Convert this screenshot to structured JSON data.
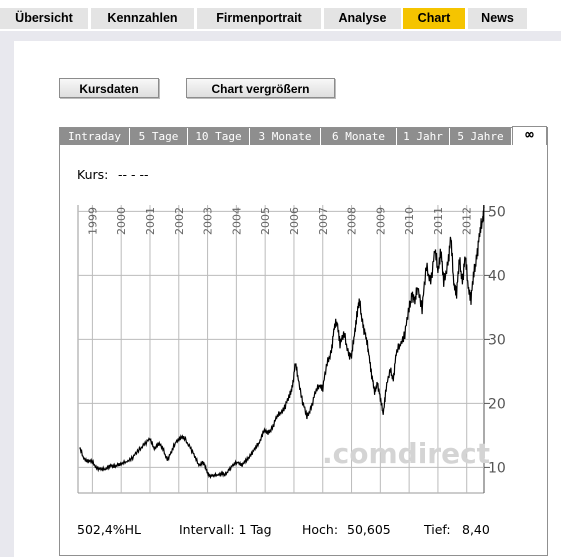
{
  "nav": {
    "tabs": [
      {
        "label": "Übersicht"
      },
      {
        "label": "Kennzahlen"
      },
      {
        "label": "Firmenportrait"
      },
      {
        "label": "Analyse"
      },
      {
        "label": "Chart",
        "active": true
      },
      {
        "label": "News"
      }
    ],
    "accent_color": "#f5c400"
  },
  "buttons": {
    "kursdaten": "Kursdaten",
    "vergroessern": "Chart vergrößern"
  },
  "ranges": {
    "items": [
      "Intraday",
      "5 Tage",
      "10 Tage",
      "3 Monate",
      "6 Monate",
      "1 Jahr",
      "5 Jahre"
    ],
    "selected_icon": "infinity-icon",
    "selected_glyph": "∞"
  },
  "kurs": {
    "label": "Kurs:",
    "value": "-- - --"
  },
  "watermark": ".comdirect",
  "footer": {
    "performance": "502,4%HL",
    "intervall": "Intervall: 1 Tag",
    "hoch_label": "Hoch:",
    "hoch_value": "50,605",
    "tief_label": "Tief:",
    "tief_value": "8,40"
  },
  "chart_data": {
    "type": "line",
    "title": "",
    "xlabel": "",
    "ylabel": "",
    "x_ticks": [
      "1999",
      "2000",
      "2001",
      "2002",
      "2003",
      "2004",
      "2005",
      "2006",
      "2007",
      "2008",
      "2009",
      "2010",
      "2011",
      "2012"
    ],
    "y_ticks": [
      10,
      20,
      30,
      40,
      50
    ],
    "ylim": [
      6,
      51
    ],
    "xlim": [
      1998.5,
      2012.6
    ],
    "grid": true,
    "series": [
      {
        "points": [
          [
            1998.55,
            13.0
          ],
          [
            1998.7,
            11.5
          ],
          [
            1998.85,
            11.0
          ],
          [
            1999.0,
            10.8
          ],
          [
            1999.15,
            10.0
          ],
          [
            1999.3,
            9.6
          ],
          [
            1999.45,
            9.8
          ],
          [
            1999.6,
            10.3
          ],
          [
            1999.75,
            10.0
          ],
          [
            1999.9,
            10.6
          ],
          [
            2000.0,
            10.4
          ],
          [
            2000.2,
            11.0
          ],
          [
            2000.4,
            11.6
          ],
          [
            2000.6,
            12.5
          ],
          [
            2000.8,
            13.8
          ],
          [
            2001.0,
            14.3
          ],
          [
            2001.15,
            13.0
          ],
          [
            2001.3,
            13.8
          ],
          [
            2001.45,
            12.8
          ],
          [
            2001.6,
            11.3
          ],
          [
            2001.75,
            12.3
          ],
          [
            2001.9,
            14.1
          ],
          [
            2002.05,
            14.7
          ],
          [
            2002.2,
            14.4
          ],
          [
            2002.4,
            13.3
          ],
          [
            2002.55,
            11.6
          ],
          [
            2002.7,
            10.4
          ],
          [
            2002.85,
            10.9
          ],
          [
            2002.95,
            9.6
          ],
          [
            2003.05,
            8.8
          ],
          [
            2003.2,
            8.6
          ],
          [
            2003.35,
            8.9
          ],
          [
            2003.5,
            9.1
          ],
          [
            2003.6,
            8.7
          ],
          [
            2003.75,
            9.8
          ],
          [
            2003.9,
            10.3
          ],
          [
            2004.05,
            10.9
          ],
          [
            2004.2,
            10.4
          ],
          [
            2004.35,
            11.0
          ],
          [
            2004.5,
            12.1
          ],
          [
            2004.65,
            12.8
          ],
          [
            2004.8,
            14.0
          ],
          [
            2004.95,
            15.8
          ],
          [
            2005.1,
            15.2
          ],
          [
            2005.25,
            16.4
          ],
          [
            2005.4,
            17.7
          ],
          [
            2005.55,
            18.7
          ],
          [
            2005.7,
            19.7
          ],
          [
            2005.85,
            21.0
          ],
          [
            2005.95,
            23.0
          ],
          [
            2006.05,
            26.0
          ],
          [
            2006.15,
            24.0
          ],
          [
            2006.3,
            20.3
          ],
          [
            2006.45,
            17.7
          ],
          [
            2006.6,
            19.6
          ],
          [
            2006.75,
            21.6
          ],
          [
            2006.9,
            23.0
          ],
          [
            2007.0,
            22.5
          ],
          [
            2007.15,
            26.0
          ],
          [
            2007.3,
            28.5
          ],
          [
            2007.4,
            31.5
          ],
          [
            2007.5,
            33.0
          ],
          [
            2007.6,
            29.5
          ],
          [
            2007.75,
            30.5
          ],
          [
            2007.9,
            28.0
          ],
          [
            2008.0,
            27.0
          ],
          [
            2008.1,
            31.0
          ],
          [
            2008.2,
            34.5
          ],
          [
            2008.28,
            35.5
          ],
          [
            2008.4,
            32.5
          ],
          [
            2008.5,
            30.0
          ],
          [
            2008.6,
            28.0
          ],
          [
            2008.7,
            24.5
          ],
          [
            2008.8,
            21.5
          ],
          [
            2008.9,
            23.5
          ],
          [
            2009.0,
            20.5
          ],
          [
            2009.1,
            18.5
          ],
          [
            2009.2,
            22.5
          ],
          [
            2009.35,
            25.0
          ],
          [
            2009.45,
            24.0
          ],
          [
            2009.55,
            27.5
          ],
          [
            2009.7,
            29.5
          ],
          [
            2009.85,
            31.0
          ],
          [
            2010.0,
            34.5
          ],
          [
            2010.1,
            37.5
          ],
          [
            2010.2,
            35.5
          ],
          [
            2010.3,
            38.5
          ],
          [
            2010.45,
            35.0
          ],
          [
            2010.6,
            41.0
          ],
          [
            2010.75,
            39.5
          ],
          [
            2010.9,
            43.5
          ],
          [
            2011.0,
            41.0
          ],
          [
            2011.1,
            44.0
          ],
          [
            2011.2,
            38.5
          ],
          [
            2011.35,
            42.5
          ],
          [
            2011.45,
            45.5
          ],
          [
            2011.55,
            39.0
          ],
          [
            2011.65,
            37.5
          ],
          [
            2011.75,
            42.0
          ],
          [
            2011.85,
            39.5
          ],
          [
            2011.95,
            42.5
          ],
          [
            2012.05,
            38.5
          ],
          [
            2012.15,
            36.5
          ],
          [
            2012.25,
            40.0
          ],
          [
            2012.35,
            43.5
          ],
          [
            2012.45,
            46.0
          ],
          [
            2012.55,
            49.0
          ],
          [
            2012.6,
            50.5
          ]
        ]
      }
    ]
  }
}
